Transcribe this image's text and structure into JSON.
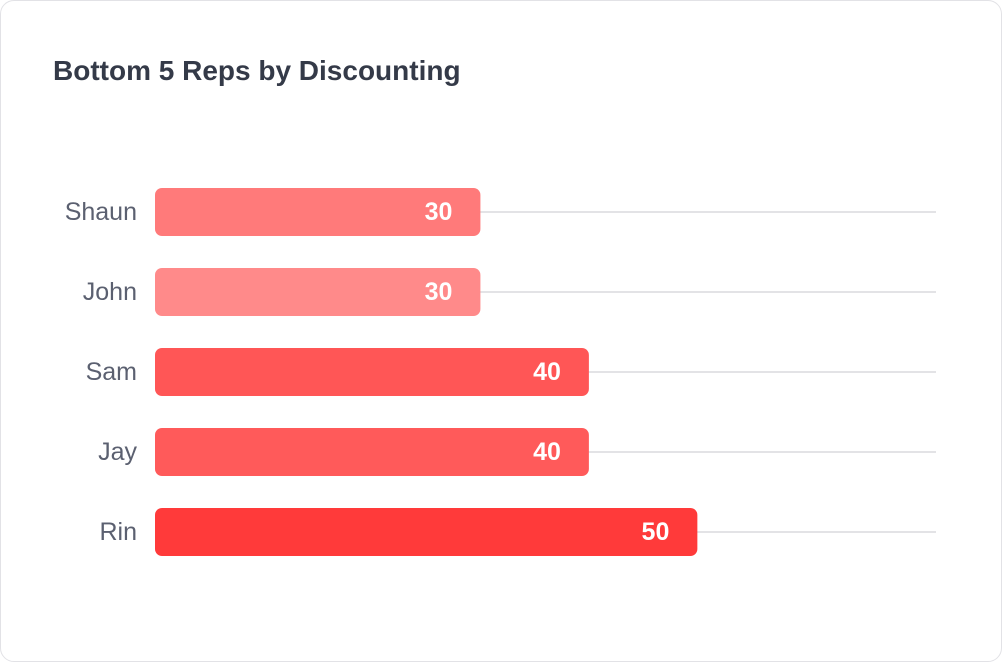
{
  "chart_data": {
    "type": "bar",
    "orientation": "horizontal",
    "title": "Bottom 5 Reps by Discounting",
    "categories": [
      "Shaun",
      "John",
      "Sam",
      "Jay",
      "Rin"
    ],
    "values": [
      30,
      30,
      40,
      40,
      50
    ],
    "xlim": [
      0,
      72
    ],
    "grid": false,
    "legend": "none",
    "colors": [
      "#ff7a7a",
      "#ff8a8a",
      "#ff5656",
      "#ff5a5a",
      "#ff3a3a"
    ],
    "track_color": "#e3e3e6"
  }
}
